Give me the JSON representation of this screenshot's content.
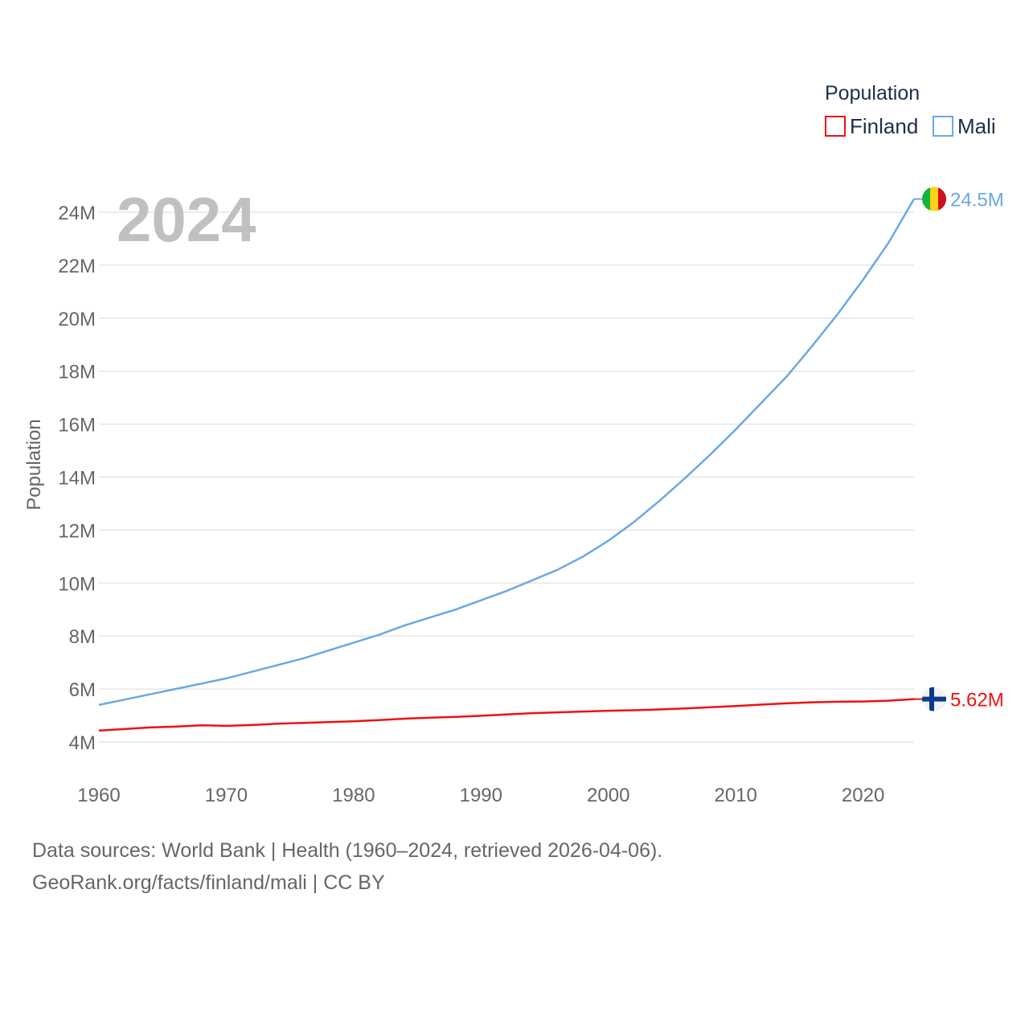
{
  "chart_data": {
    "type": "line",
    "title": "Population",
    "year_label": "2024",
    "xlabel": "",
    "ylabel": "Population",
    "xlim": [
      1960,
      2024
    ],
    "ylim": [
      3000000,
      25000000
    ],
    "x_ticks": [
      1960,
      1970,
      1980,
      1990,
      2000,
      2010,
      2020
    ],
    "x_tick_labels": [
      "1960",
      "1970",
      "1980",
      "1990",
      "2000",
      "2010",
      "2020"
    ],
    "y_ticks": [
      4000000,
      6000000,
      8000000,
      10000000,
      12000000,
      14000000,
      16000000,
      18000000,
      20000000,
      22000000,
      24000000
    ],
    "y_tick_labels": [
      "4M",
      "6M",
      "8M",
      "10M",
      "12M",
      "14M",
      "16M",
      "18M",
      "20M",
      "22M",
      "24M"
    ],
    "legend": {
      "title": "Population",
      "position": "top-right"
    },
    "series": [
      {
        "name": "Finland",
        "color": "#ee1111",
        "end_label": "5.62M",
        "flag": "finland-flag-icon",
        "x": [
          1960,
          1962,
          1964,
          1966,
          1968,
          1970,
          1972,
          1974,
          1976,
          1978,
          1980,
          1982,
          1984,
          1986,
          1988,
          1990,
          1992,
          1994,
          1996,
          1998,
          2000,
          2002,
          2004,
          2006,
          2008,
          2010,
          2012,
          2014,
          2016,
          2018,
          2020,
          2022,
          2024
        ],
        "values": [
          4430000,
          4490000,
          4550000,
          4580000,
          4630000,
          4610000,
          4640000,
          4690000,
          4720000,
          4750000,
          4780000,
          4830000,
          4880000,
          4920000,
          4950000,
          4990000,
          5040000,
          5090000,
          5120000,
          5150000,
          5180000,
          5200000,
          5230000,
          5270000,
          5310000,
          5360000,
          5410000,
          5460000,
          5500000,
          5520000,
          5530000,
          5560000,
          5620000
        ]
      },
      {
        "name": "Mali",
        "color": "#6aa9e0",
        "end_label": "24.5M",
        "flag": "mali-flag-icon",
        "x": [
          1960,
          1962,
          1964,
          1966,
          1968,
          1970,
          1972,
          1974,
          1976,
          1978,
          1980,
          1982,
          1984,
          1986,
          1988,
          1990,
          1992,
          1994,
          1996,
          1998,
          2000,
          2002,
          2004,
          2006,
          2008,
          2010,
          2012,
          2014,
          2016,
          2018,
          2020,
          2022,
          2024
        ],
        "values": [
          5400000,
          5600000,
          5800000,
          6000000,
          6200000,
          6400000,
          6650000,
          6900000,
          7150000,
          7450000,
          7750000,
          8050000,
          8400000,
          8700000,
          9000000,
          9350000,
          9700000,
          10100000,
          10500000,
          11000000,
          11600000,
          12300000,
          13100000,
          13950000,
          14850000,
          15800000,
          16800000,
          17800000,
          18950000,
          20150000,
          21450000,
          22850000,
          24500000
        ]
      }
    ]
  },
  "footer": {
    "line1": "Data sources: World Bank | Health (1960–2024, retrieved 2026-04-06).",
    "line2": "GeoRank.org/facts/finland/mali | CC BY"
  }
}
